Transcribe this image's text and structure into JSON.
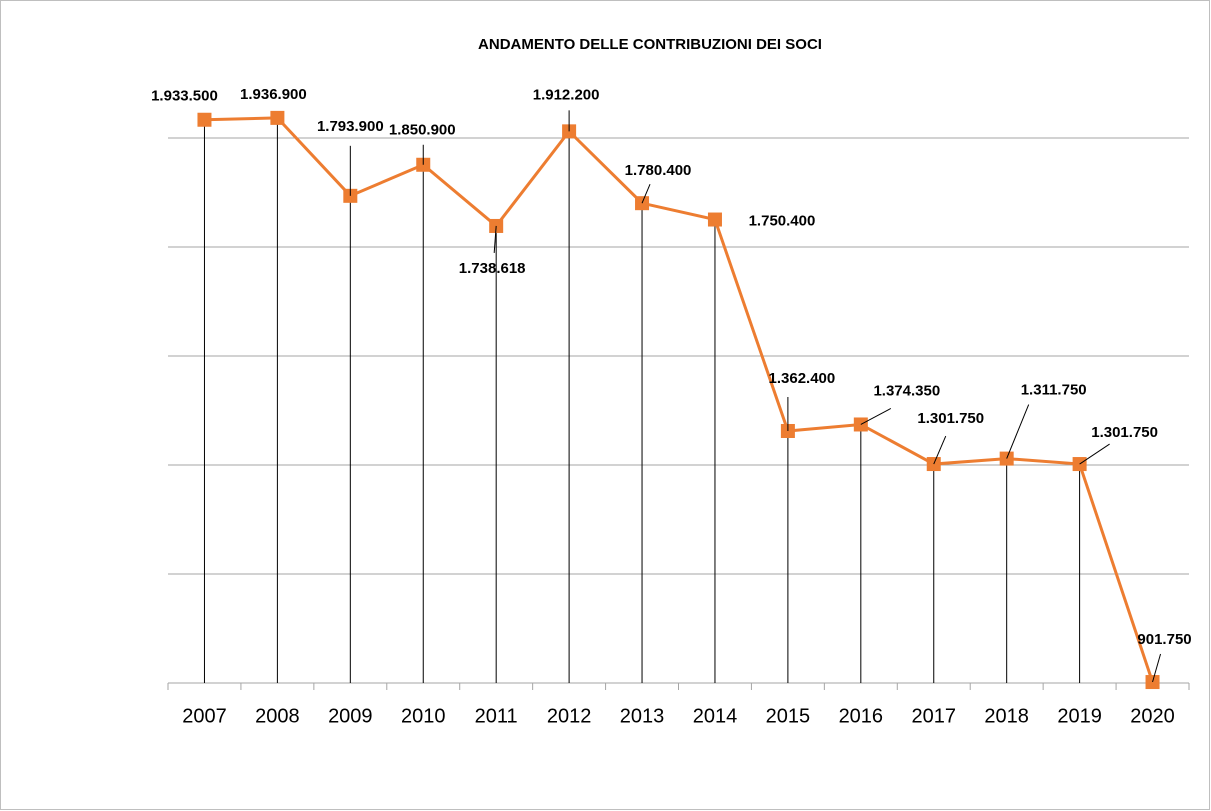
{
  "chart_data": {
    "type": "line",
    "title": "ANDAMENTO DELLE CONTRIBUZIONI DEI SOCI",
    "categories": [
      "2007",
      "2008",
      "2009",
      "2010",
      "2011",
      "2012",
      "2013",
      "2014",
      "2015",
      "2016",
      "2017",
      "2018",
      "2019",
      "2020"
    ],
    "values": [
      1933500,
      1936900,
      1793900,
      1850900,
      1738618,
      1912200,
      1780400,
      1750400,
      1362400,
      1374350,
      1301750,
      1311750,
      1301750,
      901750
    ],
    "value_labels": [
      "1.933.500",
      "1.936.900",
      "1.793.900",
      "1.850.900",
      "1.738.618",
      "1.912.200",
      "1.780.400",
      "1.750.400",
      "1.362.400",
      "1.374.350",
      "1.301.750",
      "1.311.750",
      "1.301.750",
      "901.750"
    ],
    "color": "#ed7d31",
    "ylim": [
      900000,
      2000000
    ],
    "yticks": [
      900000,
      1100000,
      1300000,
      1500000,
      1700000,
      1900000
    ],
    "grid": true
  }
}
